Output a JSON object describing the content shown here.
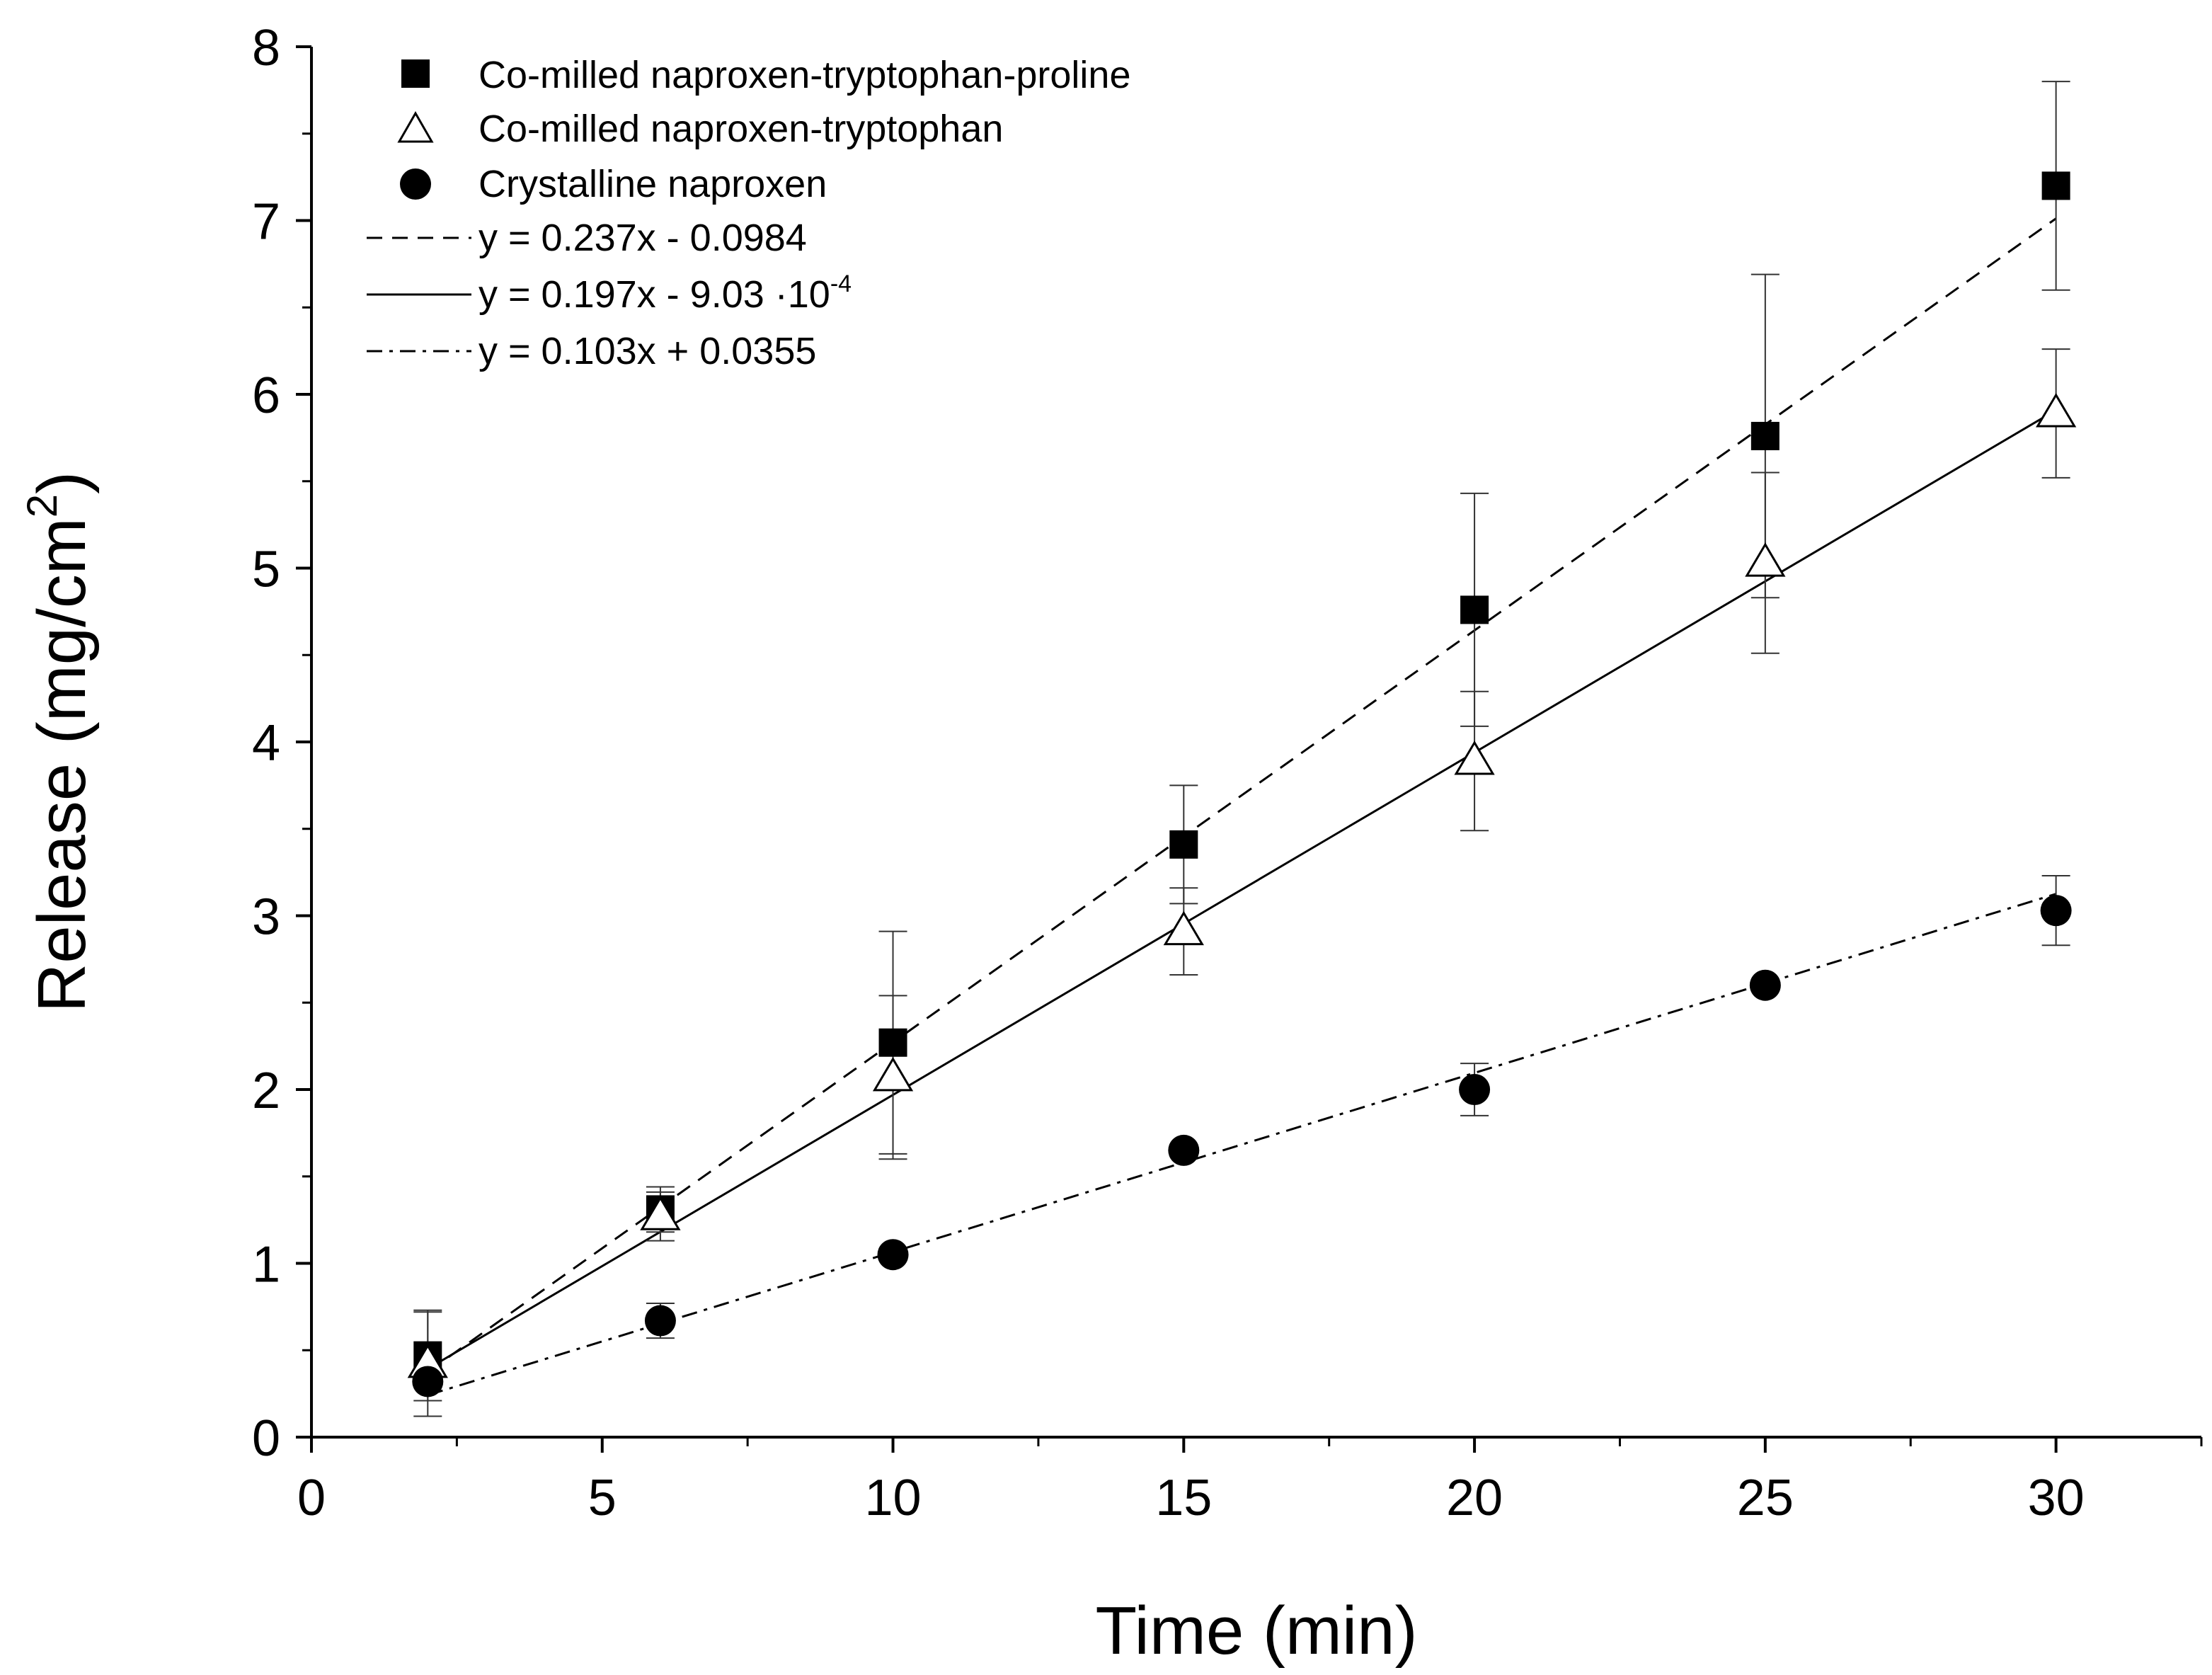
{
  "chart_data": {
    "type": "scatter",
    "title": "",
    "xlabel": "Time (min)",
    "ylabel": "Release (mg/cm²)",
    "ylabel_main": "Release (mg/cm",
    "ylabel_sup": "2",
    "ylabel_close": ")",
    "xlim": [
      0,
      32.5
    ],
    "ylim": [
      0,
      8
    ],
    "x_ticks": [
      0,
      5,
      10,
      15,
      20,
      25,
      30
    ],
    "x_tick_labels": [
      "0",
      "5",
      "10",
      "15",
      "20",
      "25",
      "30"
    ],
    "y_ticks": [
      0,
      1,
      2,
      3,
      4,
      5,
      6,
      7,
      8
    ],
    "y_tick_labels": [
      "0",
      "1",
      "2",
      "3",
      "4",
      "5",
      "6",
      "7",
      "8"
    ],
    "x_minor_step": 2.5,
    "y_minor_step": 0.5,
    "grid": false,
    "legend_position": "top-left",
    "series": [
      {
        "name": "Co-milled naproxen-tryptophan-proline",
        "marker": "filled-square",
        "x": [
          2,
          6,
          10,
          15,
          20,
          25,
          30
        ],
        "y": [
          0.47,
          1.31,
          2.27,
          3.41,
          4.76,
          5.76,
          7.2
        ],
        "error": [
          0.26,
          0.13,
          0.64,
          0.34,
          0.67,
          0.93,
          0.6
        ]
      },
      {
        "name": "Co-milled naproxen-tryptophan",
        "marker": "open-triangle",
        "x": [
          2,
          6,
          10,
          15,
          20,
          25,
          30
        ],
        "y": [
          0.42,
          1.27,
          2.07,
          2.91,
          3.89,
          5.03,
          5.89
        ],
        "error": [
          0.3,
          0.14,
          0.47,
          0.25,
          0.4,
          0.52,
          0.37
        ]
      },
      {
        "name": "Crystalline naproxen",
        "marker": "filled-circle",
        "x": [
          2,
          6,
          10,
          15,
          20,
          25,
          30
        ],
        "y": [
          0.32,
          0.67,
          1.05,
          1.65,
          2.0,
          2.6,
          3.03
        ],
        "error": [
          0.0,
          0.1,
          0.0,
          0.0,
          0.15,
          0.0,
          0.2
        ]
      }
    ],
    "fit_lines": [
      {
        "label": "y = 0.237x - 0.0984",
        "slope": 0.237,
        "intercept": -0.0984,
        "x_range": [
          2,
          30
        ],
        "style": "dashed"
      },
      {
        "label_main": "y = 0.197x - 9.03 ·10",
        "label_sup": "-4",
        "slope": 0.197,
        "intercept": -0.000903,
        "x_range": [
          2,
          30
        ],
        "style": "solid"
      },
      {
        "label": "y = 0.103x + 0.0355",
        "slope": 0.103,
        "intercept": 0.0355,
        "x_range": [
          2,
          30
        ],
        "style": "dash-dot"
      }
    ]
  }
}
